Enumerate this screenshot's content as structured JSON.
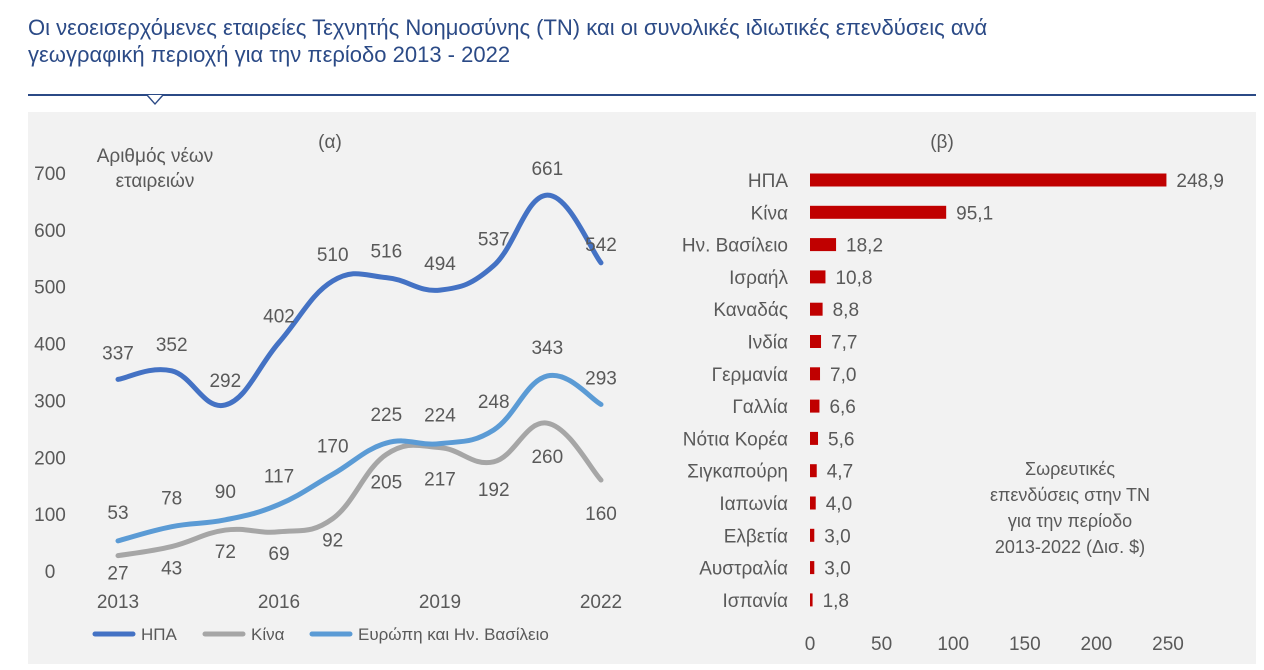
{
  "title_line1": "Οι νεοεισερχόμενες εταιρείες Τεχνητής Νοημοσύνης (ΤΝ) και οι συνολικές ιδιωτικές επενδύσεις ανά",
  "title_line2": "γεωγραφική περιοχή για την περίοδο 2013 - 2022",
  "colors": {
    "title": "#2b4a86",
    "panel_bg": "#f2f2f2",
    "usa": "#4472c4",
    "china": "#a6a6a6",
    "europe": "#5b9bd5",
    "bar": "#c00000",
    "text": "#595959"
  },
  "chart_data": [
    {
      "type": "line",
      "panel_label": "(α)",
      "ylabel_line1": "Αριθμός νέων",
      "ylabel_line2": "εταιρειών",
      "x": [
        2013,
        2014,
        2015,
        2016,
        2017,
        2018,
        2019,
        2020,
        2021,
        2022
      ],
      "x_ticks": [
        "2013",
        "2016",
        "2019",
        "2022"
      ],
      "y_ticks": [
        "0",
        "100",
        "200",
        "300",
        "400",
        "500",
        "600",
        "700"
      ],
      "ylim": [
        0,
        700
      ],
      "legend_position": "bottom",
      "series": [
        {
          "name": "ΗΠΑ",
          "values": [
            337,
            352,
            292,
            402,
            510,
            516,
            494,
            537,
            661,
            542
          ]
        },
        {
          "name": "Κίνα",
          "values": [
            27,
            43,
            72,
            69,
            92,
            205,
            217,
            192,
            260,
            160
          ]
        },
        {
          "name": "Ευρώπη και Ην. Βασίλειο",
          "values": [
            53,
            78,
            90,
            117,
            170,
            225,
            224,
            248,
            343,
            293
          ]
        }
      ]
    },
    {
      "type": "bar",
      "orientation": "horizontal",
      "panel_label": "(β)",
      "categories": [
        "ΗΠΑ",
        "Κίνα",
        "Ην. Βασίλειο",
        "Ισραήλ",
        "Καναδάς",
        "Ινδία",
        "Γερμανία",
        "Γαλλία",
        "Νότια Κορέα",
        "Σιγκαπούρη",
        "Ιαπωνία",
        "Ελβετία",
        "Αυστραλία",
        "Ισπανία"
      ],
      "values": [
        248.9,
        95.1,
        18.2,
        10.8,
        8.8,
        7.7,
        7.0,
        6.6,
        5.6,
        4.7,
        4.0,
        3.0,
        3.0,
        1.8
      ],
      "value_labels": [
        "248,9",
        "95,1",
        "18,2",
        "10,8",
        "8,8",
        "7,7",
        "7,0",
        "6,6",
        "5,6",
        "4,7",
        "4,0",
        "3,0",
        "3,0",
        "1,8"
      ],
      "x_ticks": [
        "0",
        "50",
        "100",
        "150",
        "200",
        "250"
      ],
      "xlim": [
        0,
        250
      ],
      "annotation": [
        "Σωρευτικές",
        "επενδύσεις στην ΤΝ",
        "για την περίοδο",
        "2013-2022 (Δισ. $)"
      ]
    }
  ]
}
